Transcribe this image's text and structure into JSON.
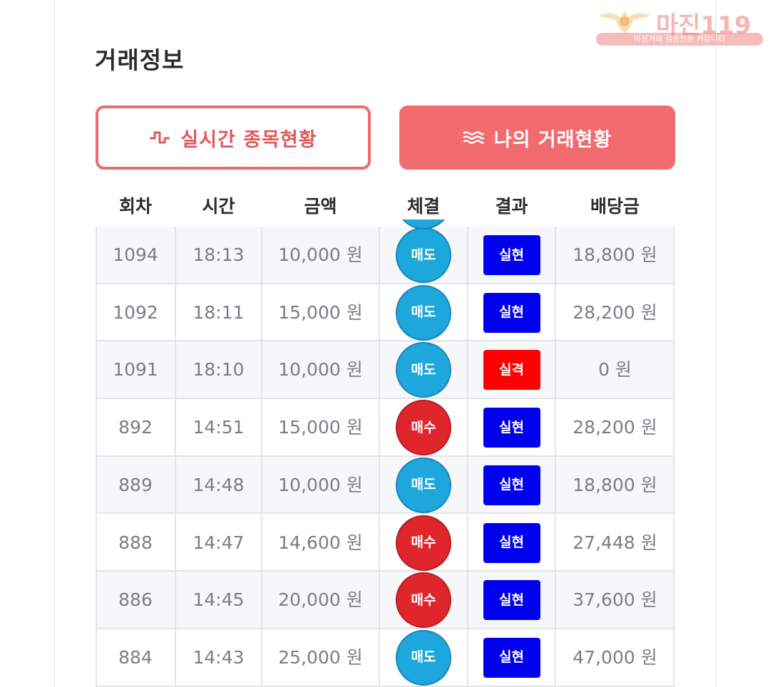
{
  "page": {
    "title": "거래정보"
  },
  "watermark": {
    "brand": "마진119",
    "subtitle": "마진거래 검증전문 커뮤니티"
  },
  "buttons": {
    "live": "실시간 종목현황",
    "mine": "나의 거래현황"
  },
  "colors": {
    "accent": "#f26b6f",
    "sell": "#1ea7dd",
    "buy": "#e0262d",
    "win": "#0000ee",
    "lose": "#ff0000"
  },
  "table": {
    "headers": [
      "회차",
      "시간",
      "금액",
      "체결",
      "결과",
      "배당금"
    ],
    "rows": [
      {
        "round": "1094",
        "time": "18:13",
        "amount": "10,000 원",
        "trade": "매도",
        "trade_type": "sell",
        "result": "실현",
        "result_type": "win",
        "payout": "18,800 원"
      },
      {
        "round": "1092",
        "time": "18:11",
        "amount": "15,000 원",
        "trade": "매도",
        "trade_type": "sell",
        "result": "실현",
        "result_type": "win",
        "payout": "28,200 원"
      },
      {
        "round": "1091",
        "time": "18:10",
        "amount": "10,000 원",
        "trade": "매도",
        "trade_type": "sell",
        "result": "실격",
        "result_type": "lose",
        "payout": "0 원"
      },
      {
        "round": "892",
        "time": "14:51",
        "amount": "15,000 원",
        "trade": "매수",
        "trade_type": "buy",
        "result": "실현",
        "result_type": "win",
        "payout": "28,200 원"
      },
      {
        "round": "889",
        "time": "14:48",
        "amount": "10,000 원",
        "trade": "매도",
        "trade_type": "sell",
        "result": "실현",
        "result_type": "win",
        "payout": "18,800 원"
      },
      {
        "round": "888",
        "time": "14:47",
        "amount": "14,600 원",
        "trade": "매수",
        "trade_type": "buy",
        "result": "실현",
        "result_type": "win",
        "payout": "27,448 원"
      },
      {
        "round": "886",
        "time": "14:45",
        "amount": "20,000 원",
        "trade": "매수",
        "trade_type": "buy",
        "result": "실현",
        "result_type": "win",
        "payout": "37,600 원"
      },
      {
        "round": "884",
        "time": "14:43",
        "amount": "25,000 원",
        "trade": "매도",
        "trade_type": "sell",
        "result": "실현",
        "result_type": "win",
        "payout": "47,000 원"
      }
    ]
  }
}
